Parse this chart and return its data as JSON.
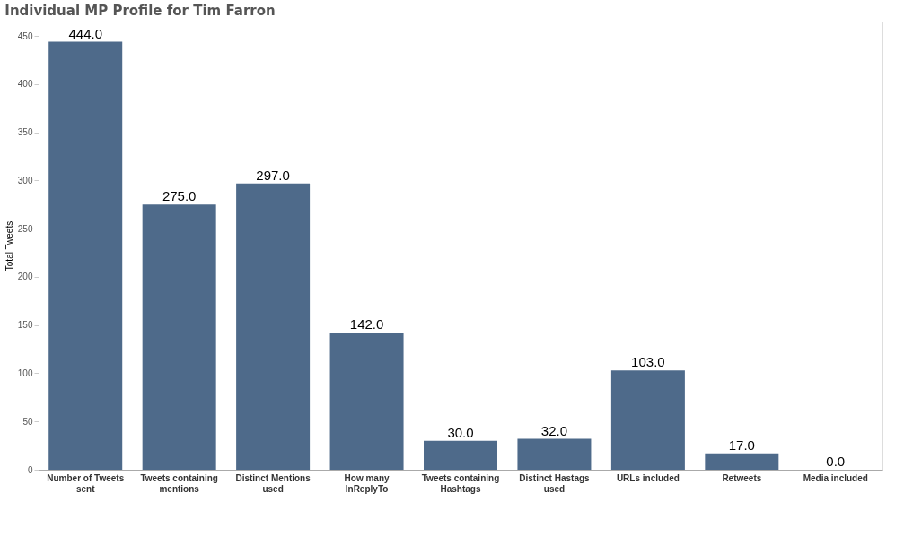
{
  "chart_data": {
    "type": "bar",
    "title": "Individual MP Profile for Tim Farron",
    "ylabel": "Total Tweets",
    "categories": [
      "Number of Tweets sent",
      "Tweets containing mentions",
      "Distinct Mentions used",
      "How many InReplyTo",
      "Tweets containing Hashtags",
      "Distinct Hastags used",
      "URLs included",
      "Retweets",
      "Media included"
    ],
    "values": [
      444,
      275,
      297,
      142,
      30,
      32,
      103,
      17,
      0
    ],
    "value_labels": [
      "444.0",
      "275.0",
      "297.0",
      "142.0",
      "30.0",
      "32.0",
      "103.0",
      "17.0",
      "0.0"
    ],
    "color": "#4e6a8a",
    "ylim": [
      0,
      465
    ],
    "yticks": [
      0,
      50,
      100,
      150,
      200,
      250,
      300,
      350,
      400,
      450
    ],
    "grid": false
  }
}
